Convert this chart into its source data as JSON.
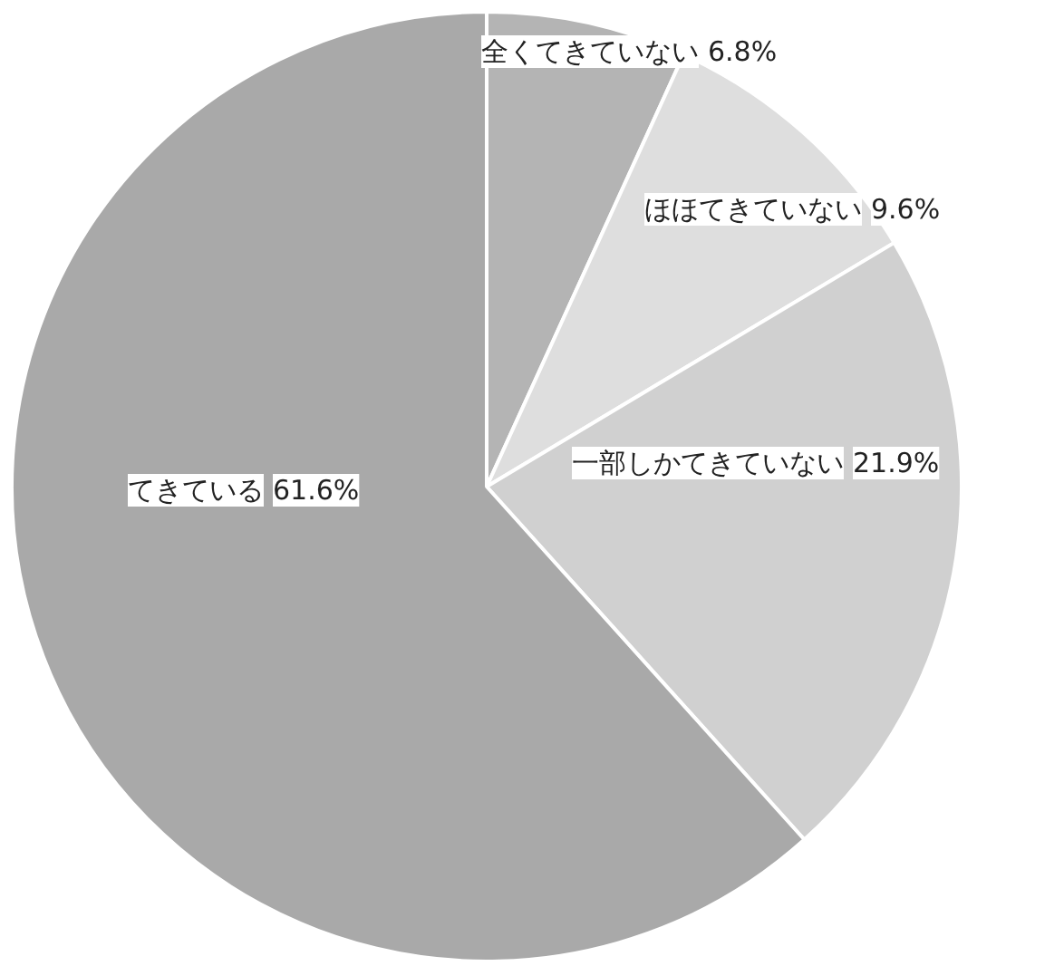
{
  "chart_data": {
    "type": "pie",
    "categories": [
      "全くてきていない",
      "ほほてきていない",
      "一部しかてきていない",
      "てきている"
    ],
    "values": [
      6.8,
      9.6,
      21.9,
      61.6
    ],
    "colors": [
      "#b4b4b4",
      "#dedede",
      "#d0d0d0",
      "#a9a9a9"
    ],
    "value_labels": [
      "6.8%",
      "9.6%",
      "21.9%",
      "61.6%"
    ]
  }
}
